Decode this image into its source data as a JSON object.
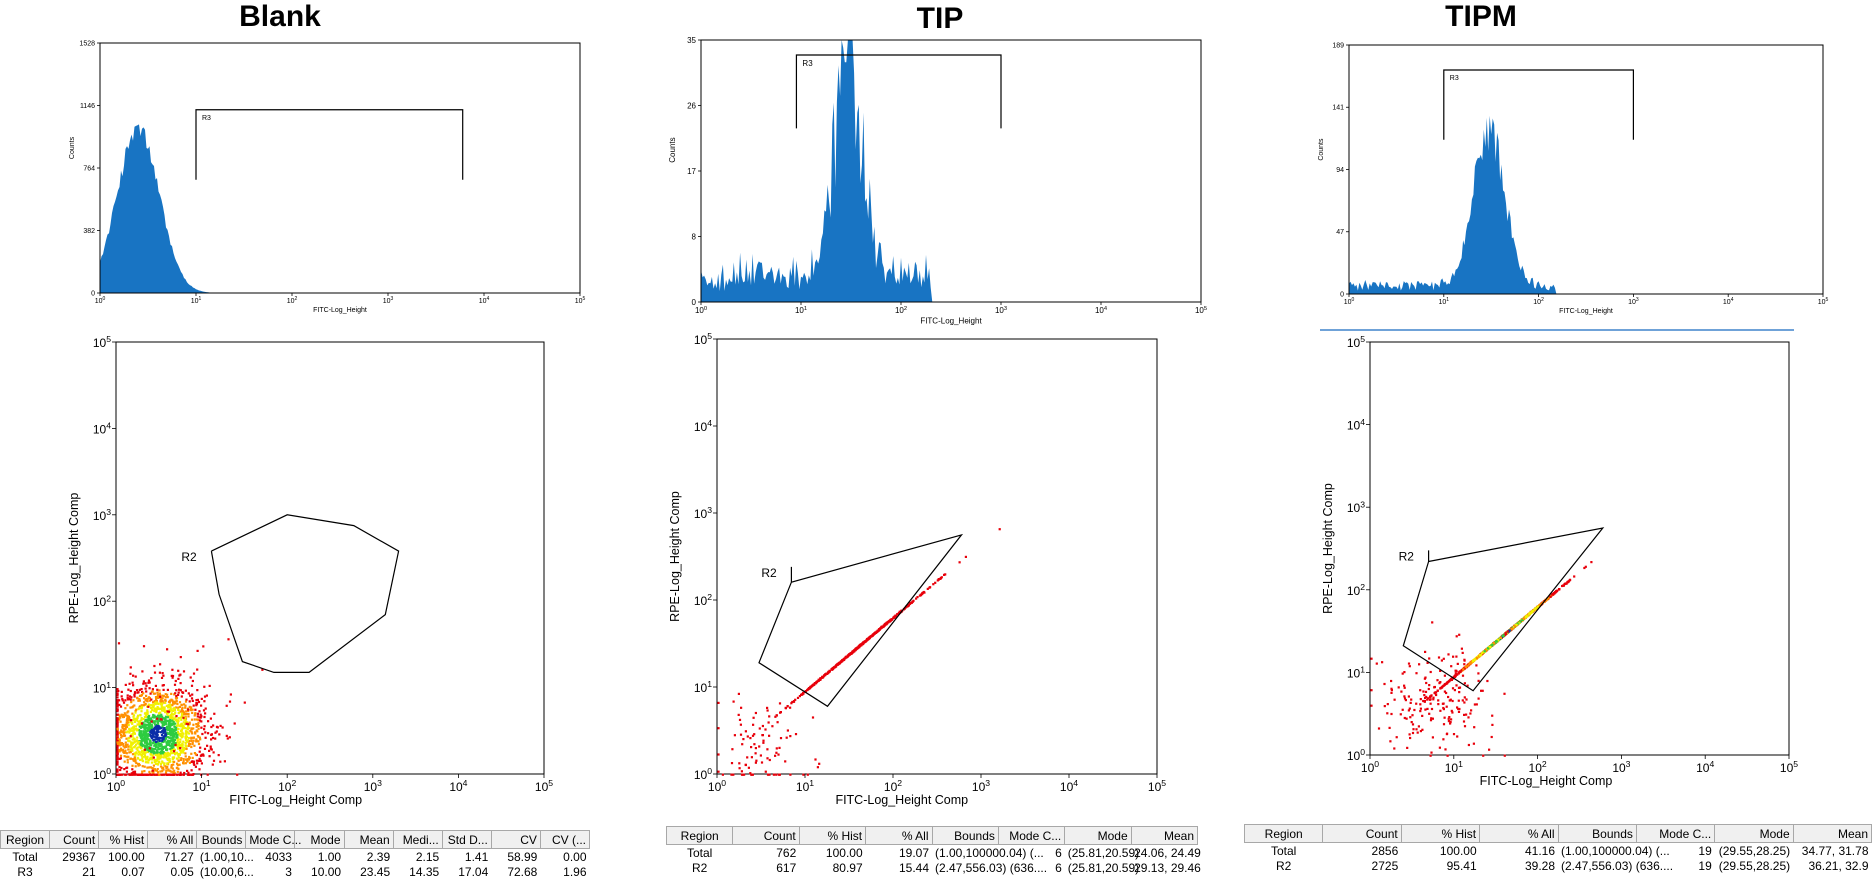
{
  "panels": [
    {
      "title": "Blank"
    },
    {
      "title": "TIP"
    },
    {
      "title": "TIPM"
    }
  ],
  "chart_data": [
    {
      "type": "histogram",
      "panel": "Blank",
      "xlabel": "FITC-Log_Height",
      "ylabel": "Counts",
      "x_scale": "log",
      "xlim": [
        1,
        100000
      ],
      "ylim": [
        0,
        1528
      ],
      "yticks": [
        "0",
        "382",
        "764",
        "1146",
        "1528"
      ],
      "xticks": [
        "10^0",
        "10^1",
        "10^2",
        "10^3",
        "10^4",
        "10^5"
      ],
      "gate": {
        "name": "R3",
        "range": [
          10,
          6000
        ],
        "level": 1120
      },
      "profile": {
        "peak_x": 2.5,
        "peak_y": 1000,
        "width_decades": 0.22,
        "noise": 0.06,
        "baseline": 0,
        "min_x": 1,
        "max_x": 15
      }
    },
    {
      "type": "histogram",
      "panel": "TIP",
      "xlabel": "FITC-Log_Height",
      "ylabel": "Counts",
      "x_scale": "log",
      "xlim": [
        1,
        100000
      ],
      "ylim": [
        0,
        35
      ],
      "yticks": [
        "0",
        "8",
        "17",
        "26",
        "35"
      ],
      "xticks": [
        "10^0",
        "10^1",
        "10^2",
        "10^3",
        "10^4",
        "10^5"
      ],
      "gate": {
        "name": "R3",
        "range": [
          9,
          1000
        ],
        "level": 33
      },
      "profile": {
        "peak_x": 30,
        "peak_y": 30,
        "width_decades": 0.14,
        "noise": 0.35,
        "baseline": 4,
        "min_x": 1,
        "max_x": 200
      }
    },
    {
      "type": "histogram",
      "panel": "TIPM",
      "xlabel": "FITC-Log_Height",
      "ylabel": "Counts",
      "x_scale": "log",
      "xlim": [
        1,
        100000
      ],
      "ylim": [
        0,
        189
      ],
      "yticks": [
        "0",
        "47",
        "94",
        "141",
        "189"
      ],
      "xticks": [
        "10^0",
        "10^1",
        "10^2",
        "10^3",
        "10^4",
        "10^5"
      ],
      "gate": {
        "name": "R3",
        "range": [
          10,
          1000
        ],
        "level": 170
      },
      "profile": {
        "peak_x": 30,
        "peak_y": 120,
        "width_decades": 0.16,
        "noise": 0.15,
        "baseline": 7,
        "min_x": 1,
        "max_x": 150
      }
    },
    {
      "type": "scatter",
      "panel": "Blank",
      "xlabel": "FITC-Log_Height Comp",
      "ylabel": "RPE-Log_Height Comp",
      "x_scale": "log",
      "y_scale": "log",
      "xlim": [
        1,
        100000
      ],
      "ylim": [
        1,
        100000
      ],
      "xticks": [
        "10^0",
        "10^1",
        "10^2",
        "10^3",
        "10^4",
        "10^5"
      ],
      "yticks": [
        "10^0",
        "10^1",
        "10^2",
        "10^3",
        "10^4",
        "10^5"
      ],
      "gate": {
        "name": "R2",
        "polygon": [
          [
            13,
            380
          ],
          [
            100,
            1000
          ],
          [
            600,
            750
          ],
          [
            2000,
            380
          ],
          [
            1400,
            70
          ],
          [
            180,
            15
          ],
          [
            70,
            15
          ],
          [
            30,
            20
          ],
          [
            16,
            120
          ],
          [
            13,
            380
          ]
        ]
      },
      "clusters": [
        {
          "center": [
            3,
            3
          ],
          "spread": [
            0.28,
            0.28
          ],
          "count": 1800,
          "density": true
        },
        {
          "center": [
            4,
            5
          ],
          "spread": [
            0.45,
            0.45
          ],
          "count": 70,
          "density": false
        }
      ]
    },
    {
      "type": "scatter",
      "panel": "TIP",
      "xlabel": "FITC-Log_Height Comp",
      "ylabel": "RPE-Log_Height Comp",
      "x_scale": "log",
      "y_scale": "log",
      "xlim": [
        1,
        100000
      ],
      "ylim": [
        1,
        100000
      ],
      "xticks": [
        "10^0",
        "10^1",
        "10^2",
        "10^3",
        "10^4",
        "10^5"
      ],
      "yticks": [
        "10^0",
        "10^1",
        "10^2",
        "10^3",
        "10^4",
        "10^5"
      ],
      "gate": {
        "name": "R2",
        "polygon": [
          [
            7,
            240
          ],
          [
            7,
            160
          ],
          [
            600,
            560
          ],
          [
            18,
            6
          ],
          [
            3,
            19
          ],
          [
            7,
            160
          ]
        ]
      },
      "clusters": [
        {
          "center": [
            40,
            30
          ],
          "spread": [
            0.18,
            0.15
          ],
          "count": 520,
          "density": false,
          "diag": true
        },
        {
          "center": [
            3,
            2
          ],
          "spread": [
            0.3,
            0.3
          ],
          "count": 90,
          "density": false
        }
      ]
    },
    {
      "type": "scatter",
      "panel": "TIPM",
      "xlabel": "FITC-Log_Height Comp",
      "ylabel": "RPE-Log_Height Comp",
      "x_scale": "log",
      "y_scale": "log",
      "xlim": [
        1,
        100000
      ],
      "ylim": [
        1,
        100000
      ],
      "xticks": [
        "10^0",
        "10^1",
        "10^2",
        "10^3",
        "10^4",
        "10^5"
      ],
      "yticks": [
        "10^0",
        "10^1",
        "10^2",
        "10^3",
        "10^4",
        "10^5"
      ],
      "gate": {
        "name": "R2",
        "polygon": [
          [
            5,
            300
          ],
          [
            5,
            220
          ],
          [
            600,
            560
          ],
          [
            17,
            6
          ],
          [
            2.5,
            21
          ],
          [
            5,
            220
          ]
        ]
      },
      "clusters": [
        {
          "center": [
            40,
            30
          ],
          "spread": [
            0.14,
            0.12
          ],
          "count": 1500,
          "density": true,
          "diag": true
        },
        {
          "center": [
            6,
            5
          ],
          "spread": [
            0.35,
            0.3
          ],
          "count": 200,
          "density": false
        }
      ]
    }
  ],
  "tables": [
    {
      "columns": [
        "Region",
        "Count",
        "% Hist",
        "% All",
        "Bounds",
        "Mode C...",
        "Mode",
        "Mean",
        "Medi...",
        "Std D...",
        "CV",
        "CV (..."
      ],
      "rows": [
        [
          "Total",
          "29367",
          "100.00",
          "71.27",
          "(1.00,10...",
          "4033",
          "1.00",
          "2.39",
          "2.15",
          "1.41",
          "58.99",
          "0.00"
        ],
        [
          "R3",
          "21",
          "0.07",
          "0.05",
          "(10.00,6...",
          "3",
          "10.00",
          "23.45",
          "14.35",
          "17.04",
          "72.68",
          "1.96"
        ]
      ]
    },
    {
      "columns": [
        "Region",
        "Count",
        "% Hist",
        "% All",
        "Bounds",
        "Mode C...",
        "Mode",
        "Mean"
      ],
      "rows": [
        [
          "Total",
          "762",
          "100.00",
          "19.07",
          "(1.00,100000.04) (...",
          "6",
          "(25.81,20.59)",
          "24.06, 24.49"
        ],
        [
          "R2",
          "617",
          "80.97",
          "15.44",
          "(2.47,556.03) (636....",
          "6",
          "(25.81,20.59)",
          "29.13, 29.46"
        ]
      ]
    },
    {
      "columns": [
        "Region",
        "Count",
        "% Hist",
        "% All",
        "Bounds",
        "Mode C...",
        "Mode",
        "Mean"
      ],
      "rows": [
        [
          "Total",
          "2856",
          "100.00",
          "41.16",
          "(1.00,100000.04) (...",
          "19",
          "(29.55,28.25)",
          "34.77, 31.78"
        ],
        [
          "R2",
          "2725",
          "95.41",
          "39.28",
          "(2.47,556.03) (636....",
          "19",
          "(29.55,28.25)",
          "36.21, 32.9"
        ]
      ]
    }
  ],
  "colors": {
    "histogram": "#1874c3",
    "scatter_sparse": "#e8000b",
    "density_low": "#e8000b",
    "density_mid1": "#ff9000",
    "density_mid2": "#f0f000",
    "density_mid3": "#2ecc40",
    "density_high": "#0b2ea8"
  }
}
